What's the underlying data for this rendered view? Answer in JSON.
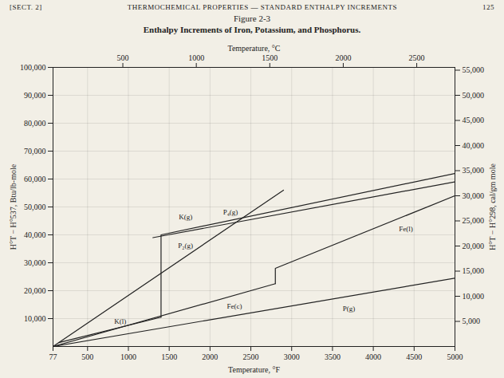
{
  "chart_data": {
    "type": "line",
    "header": {
      "left": "[SECT. 2]",
      "center": "THERMOCHEMICAL PROPERTIES — STANDARD ENTHALPY INCREMENTS",
      "right": "125"
    },
    "title": "Figure 2-3",
    "subtitle": "Enthalpy Increments of Iron, Potassium, and Phosphorus.",
    "xlabel": "Temperature, °F",
    "x2label": "Temperature, °C",
    "ylabel": "H°T − H°537, Btu/lb-mole",
    "y2label": "H°T − H°298, cal/gm mole",
    "color": "#222222",
    "grid": true,
    "xlim": [
      77,
      5000
    ],
    "xticks": [
      77,
      500,
      1000,
      1500,
      2000,
      2500,
      3000,
      3500,
      4000,
      4500,
      5000
    ],
    "x2lim": [
      25,
      2760
    ],
    "x2ticks": [
      500,
      1000,
      1500,
      2000,
      2500
    ],
    "ylim": [
      0,
      100000
    ],
    "yticks": [
      {
        "value": 10000,
        "label": "10,000"
      },
      {
        "value": 20000,
        "label": "20,000"
      },
      {
        "value": 30000,
        "label": "30,000"
      },
      {
        "value": 40000,
        "label": "40,000"
      },
      {
        "value": 50000,
        "label": "50,000"
      },
      {
        "value": 60000,
        "label": "60,000"
      },
      {
        "value": 70000,
        "label": "70,000"
      },
      {
        "value": 80000,
        "label": "80,000"
      },
      {
        "value": 90000,
        "label": "90,000"
      },
      {
        "value": 100000,
        "label": "100,000"
      }
    ],
    "y2lim": [
      0,
      55556
    ],
    "y2ticks": [
      {
        "value": 5000,
        "label": "5,000"
      },
      {
        "value": 10000,
        "label": "10,000"
      },
      {
        "value": 15000,
        "label": "15,000"
      },
      {
        "value": 20000,
        "label": "20,000"
      },
      {
        "value": 25000,
        "label": "25,000"
      },
      {
        "value": 30000,
        "label": "30,000"
      },
      {
        "value": 35000,
        "label": "35,000"
      },
      {
        "value": 40000,
        "label": "40,000"
      },
      {
        "value": 45000,
        "label": "45,000"
      },
      {
        "value": 50000,
        "label": "50,000"
      },
      {
        "value": 55000,
        "label": "55,000"
      }
    ],
    "series": [
      {
        "name": "P₄(g)",
        "values": [
          [
            77,
            0
          ],
          [
            2900,
            56000
          ]
        ],
        "label_at": [
          2250,
          48000
        ]
      },
      {
        "name": "K(l)",
        "values": [
          [
            147,
            1400
          ],
          [
            1400,
            10500
          ]
        ],
        "label_at": [
          900,
          9000
        ]
      },
      {
        "name": "K(g)",
        "values": [
          [
            1400,
            10500
          ],
          [
            1400,
            40000
          ],
          [
            5000,
            62000
          ]
        ],
        "label_at": [
          1700,
          46500
        ]
      },
      {
        "name": "P₂(g)",
        "values": [
          [
            1300,
            39000
          ],
          [
            5000,
            59000
          ]
        ],
        "label_at": [
          1700,
          36000
        ]
      },
      {
        "name": "Fe(c)",
        "values": [
          [
            77,
            0
          ],
          [
            2800,
            22500
          ]
        ],
        "label_at": [
          2300,
          14300
        ]
      },
      {
        "name": "Fe(l)",
        "values": [
          [
            2800,
            22500
          ],
          [
            2800,
            28000
          ],
          [
            5000,
            54000
          ]
        ],
        "label_at": [
          4400,
          42000
        ]
      },
      {
        "name": "P(g)",
        "values": [
          [
            77,
            0
          ],
          [
            5000,
            24500
          ]
        ],
        "label_at": [
          3700,
          13500
        ]
      }
    ]
  }
}
